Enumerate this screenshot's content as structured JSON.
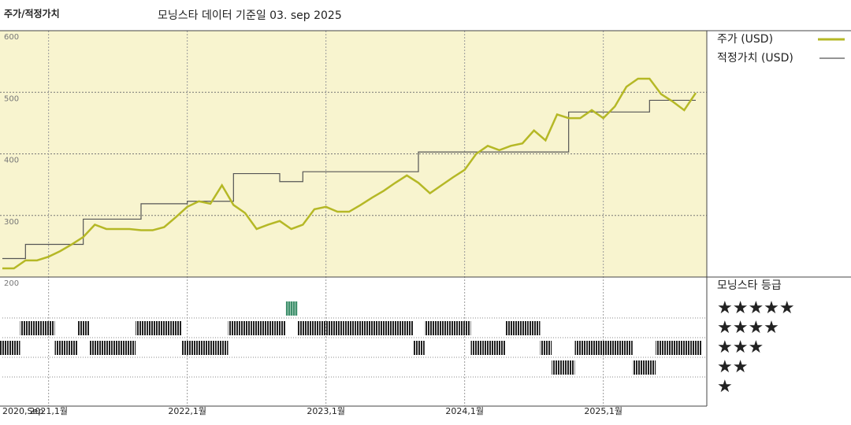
{
  "chart_data": {
    "type": "line",
    "title": "주가/적정가치",
    "subtitle": "모닝스타 데이터 기준일 03. sep 2025",
    "x": [
      "2020-09",
      "2020-10",
      "2020-11",
      "2020-12",
      "2021-01",
      "2021-02",
      "2021-03",
      "2021-04",
      "2021-05",
      "2021-06",
      "2021-07",
      "2021-08",
      "2021-09",
      "2021-10",
      "2021-11",
      "2021-12",
      "2022-01",
      "2022-02",
      "2022-03",
      "2022-04",
      "2022-05",
      "2022-06",
      "2022-07",
      "2022-08",
      "2022-09",
      "2022-10",
      "2022-11",
      "2022-12",
      "2023-01",
      "2023-02",
      "2023-03",
      "2023-04",
      "2023-05",
      "2023-06",
      "2023-07",
      "2023-08",
      "2023-09",
      "2023-10",
      "2023-11",
      "2023-12",
      "2024-01",
      "2024-02",
      "2024-03",
      "2024-04",
      "2024-05",
      "2024-06",
      "2024-07",
      "2024-08",
      "2024-09",
      "2024-10",
      "2024-11",
      "2024-12",
      "2025-01",
      "2025-02",
      "2025-03",
      "2025-04",
      "2025-05",
      "2025-06",
      "2025-07",
      "2025-08",
      "2025-09"
    ],
    "series": [
      {
        "name": "주가 (USD)",
        "color": "#b5b826",
        "step": false,
        "values": [
          214,
          214,
          227,
          227,
          233,
          242,
          253,
          265,
          285,
          278,
          278,
          278,
          276,
          276,
          281,
          297,
          314,
          323,
          319,
          349,
          317,
          304,
          278,
          285,
          291,
          278,
          285,
          310,
          314,
          306,
          306,
          317,
          329,
          340,
          353,
          365,
          353,
          336,
          349,
          362,
          374,
          400,
          413,
          406,
          413,
          417,
          438,
          422,
          464,
          458,
          458,
          471,
          458,
          477,
          509,
          522,
          522,
          497,
          485,
          471,
          499
        ]
      },
      {
        "name": "적정가치 (USD)",
        "color": "#555555",
        "step": true,
        "values": [
          230,
          230,
          253,
          253,
          253,
          253,
          253,
          294,
          294,
          294,
          294,
          294,
          319,
          319,
          319,
          319,
          323,
          323,
          323,
          323,
          368,
          368,
          368,
          368,
          355,
          355,
          371,
          371,
          371,
          371,
          371,
          371,
          371,
          371,
          371,
          371,
          403,
          403,
          403,
          403,
          403,
          403,
          403,
          403,
          403,
          403,
          403,
          403,
          403,
          468,
          468,
          468,
          468,
          468,
          468,
          468,
          487,
          487,
          487,
          487,
          487
        ]
      }
    ],
    "ylim": [
      200,
      600
    ],
    "yticks": [
      600,
      500,
      400,
      300,
      200
    ],
    "xticks": [
      {
        "value": "2020-09",
        "label": "2020,Sep"
      },
      {
        "value": "2021-01",
        "label": "2021,1월"
      },
      {
        "value": "2022-01",
        "label": "2022,1월"
      },
      {
        "value": "2023-01",
        "label": "2023,1월"
      },
      {
        "value": "2024-01",
        "label": "2024,1월"
      },
      {
        "value": "2025-01",
        "label": "2025,1월"
      }
    ],
    "grid": true,
    "background": "#f8f4cf",
    "ratings": {
      "name": "모닝스타 등급",
      "labels": [
        "★★★★★",
        "★★★★",
        "★★★",
        "★★",
        "★"
      ],
      "levels": [
        5,
        4,
        3,
        2,
        1
      ],
      "color": "#222222",
      "top_color": "#4a9a78",
      "values": [
        3,
        3,
        4,
        4,
        4,
        3,
        3,
        4,
        3,
        3,
        3,
        3,
        4,
        4,
        4,
        4,
        3,
        3,
        3,
        3,
        4,
        4,
        4,
        4,
        4,
        5,
        4,
        4,
        4,
        4,
        4,
        4,
        4,
        4,
        4,
        4,
        3,
        4,
        4,
        4,
        4,
        3,
        3,
        3,
        4,
        4,
        4,
        3,
        2,
        2,
        3,
        3,
        3,
        3,
        3,
        2,
        2,
        3,
        3,
        3,
        3
      ]
    }
  }
}
